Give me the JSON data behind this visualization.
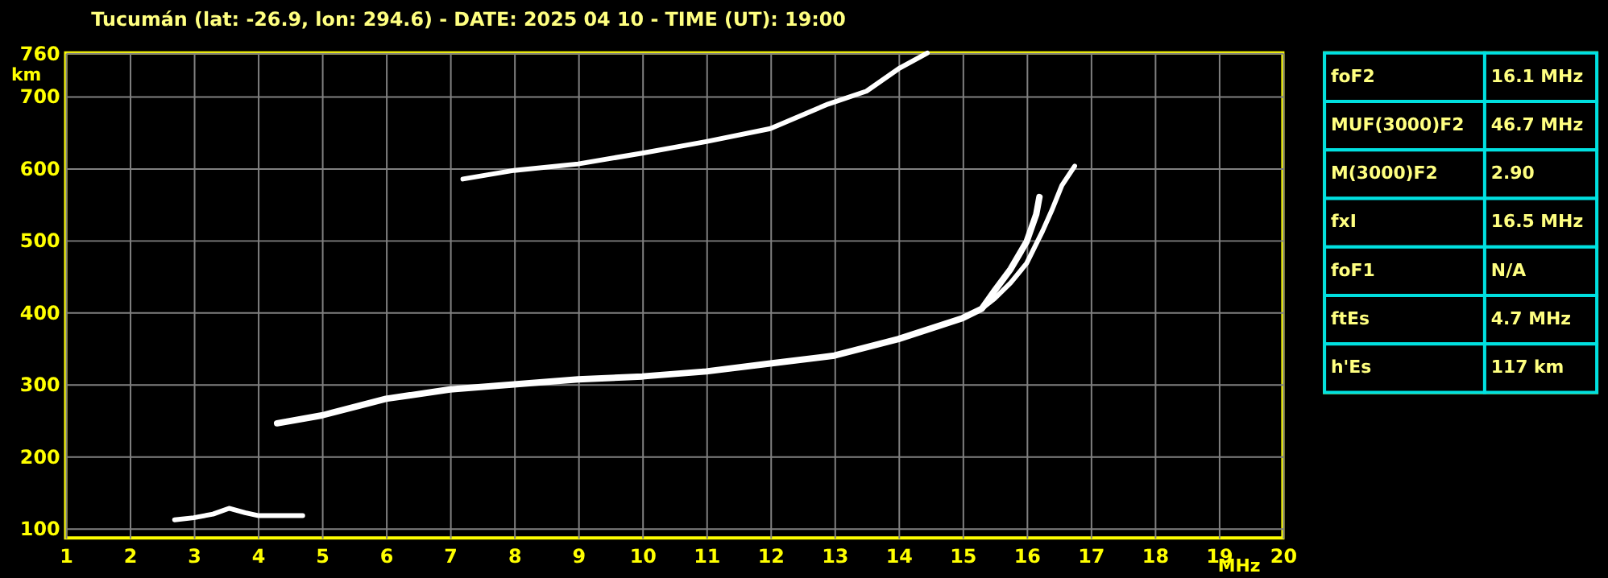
{
  "chart_data": [
    {
      "type": "line",
      "title": "Tucumán (lat: -26.9, lon: 294.6) - DATE: 2025 04 10 - TIME (UT): 19:00",
      "xlabel": "MHz",
      "ylabel": "km",
      "xlim": [
        1,
        20
      ],
      "ylim": [
        87,
        760
      ],
      "xticks": [
        1,
        2,
        3,
        4,
        5,
        6,
        7,
        8,
        9,
        10,
        11,
        12,
        13,
        14,
        15,
        16,
        17,
        18,
        19,
        20
      ],
      "yticks": [
        100,
        200,
        300,
        400,
        500,
        600,
        700,
        760
      ],
      "grid": true,
      "marker": "none",
      "line_style": "solid",
      "series": [
        {
          "color": "#ffffff",
          "x": [
            2.7,
            3.0,
            3.3,
            3.55,
            3.8,
            4.0,
            4.3,
            4.7
          ],
          "values": [
            112,
            115,
            120,
            128,
            122,
            118,
            118,
            118
          ]
        },
        {
          "color": "#ffffff",
          "x": [
            4.3,
            5,
            6,
            7,
            8,
            9,
            10,
            11,
            12,
            13,
            14,
            15,
            15.3,
            15.5,
            15.75,
            16.0,
            16.15,
            16.2
          ],
          "values": [
            246,
            257,
            280,
            293,
            300,
            307,
            311,
            318,
            329,
            340,
            363,
            392,
            405,
            430,
            460,
            498,
            536,
            560
          ]
        },
        {
          "color": "#ffffff",
          "x": [
            15.3,
            15.5,
            15.75,
            16.0,
            16.25,
            16.4,
            16.55,
            16.75
          ],
          "values": [
            405,
            419,
            441,
            468,
            513,
            543,
            576,
            603
          ]
        },
        {
          "color": "#ffffff",
          "x": [
            7.2,
            8,
            9,
            10,
            11,
            12,
            12.9,
            13.5,
            14,
            14.45
          ],
          "values": [
            585,
            597,
            606,
            621,
            637,
            655,
            689,
            707,
            738,
            760
          ]
        }
      ]
    },
    {
      "type": "other",
      "annotations": [
        "foF2",
        "16.1 MHz",
        "MUF(3000)F2",
        "46.7 MHz",
        "M(3000)F2",
        "2.90",
        "fxI",
        "16.5 MHz",
        "foF1",
        "N/A",
        "ftEs",
        "4.7 MHz",
        "h'Es",
        "117 km"
      ]
    }
  ]
}
